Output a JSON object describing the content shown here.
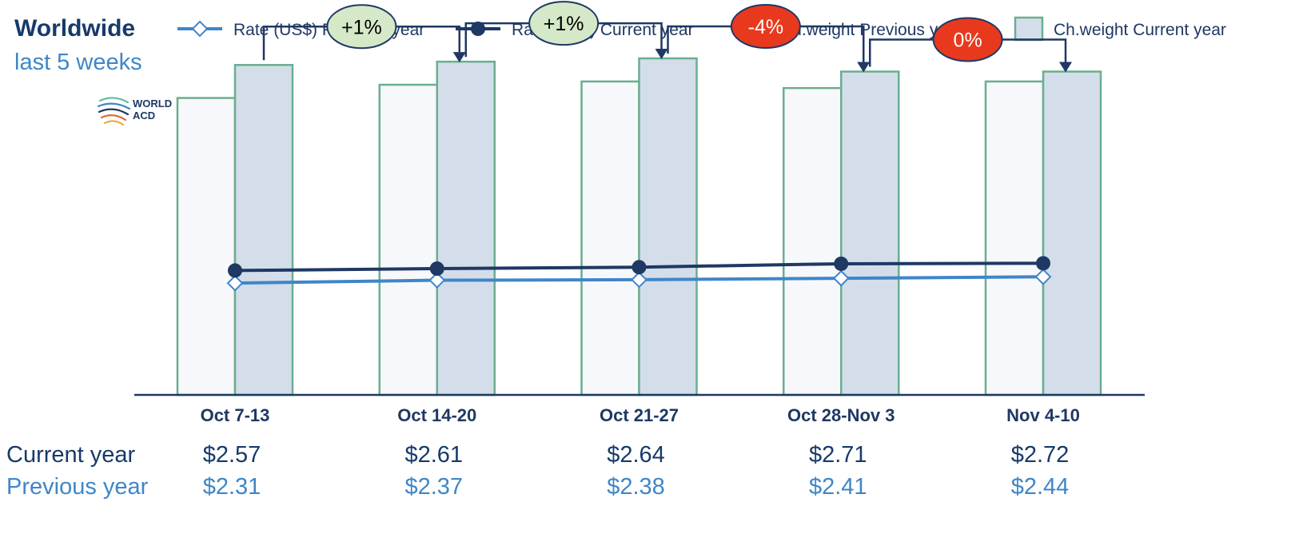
{
  "chart_data": {
    "type": "bar",
    "title": "Worldwide",
    "subtitle": "last 5 weeks",
    "categories": [
      "Oct 7-13",
      "Oct 14-20",
      "Oct 21-27",
      "Oct 28-Nov 3",
      "Nov 4-10"
    ],
    "series": [
      {
        "name": "Rate (US$) Previous year",
        "kind": "line",
        "marker": "diamond-open",
        "color": "#3f86c8",
        "values": [
          2.31,
          2.37,
          2.38,
          2.41,
          2.44
        ]
      },
      {
        "name": "Rate (US$) Current year",
        "kind": "line",
        "marker": "circle-filled",
        "color": "#1f3864",
        "values": [
          2.57,
          2.61,
          2.64,
          2.71,
          2.72
        ]
      },
      {
        "name": "Ch.weight Previous year",
        "kind": "bar",
        "color": "#f7f8fb",
        "border": "#6aae8e",
        "values": [
          90,
          94,
          95,
          93,
          95
        ]
      },
      {
        "name": "Ch.weight Current year",
        "kind": "bar",
        "color": "#d3deea",
        "border": "#6aae8e",
        "values": [
          100,
          101,
          102,
          98,
          98
        ]
      }
    ],
    "changes": [
      {
        "label": "+1%",
        "color": "#d5e8c8",
        "text_color": "#000000"
      },
      {
        "label": "+1%",
        "color": "#d5e8c8",
        "text_color": "#000000"
      },
      {
        "label": "-4%",
        "color": "#e8391e",
        "text_color": "#ffffff"
      },
      {
        "label": "0%",
        "color": "#e8391e",
        "text_color": "#ffffff"
      }
    ],
    "table": {
      "current_label": "Current year",
      "previous_label": "Previous year",
      "current": [
        "$2.57",
        "$2.61",
        "$2.64",
        "$2.71",
        "$2.72"
      ],
      "previous": [
        "$2.31",
        "$2.37",
        "$2.38",
        "$2.41",
        "$2.44"
      ]
    },
    "bar_ylim": [
      0,
      110
    ],
    "rate_ylim": [
      0,
      7.5
    ],
    "grid": false,
    "legend": "top"
  },
  "logo": {
    "line1": "WORLD",
    "line2": "ACD"
  },
  "colors": {
    "axis": "#1f3864",
    "connector": "#1f3864",
    "badge_border": "#1f3864"
  }
}
